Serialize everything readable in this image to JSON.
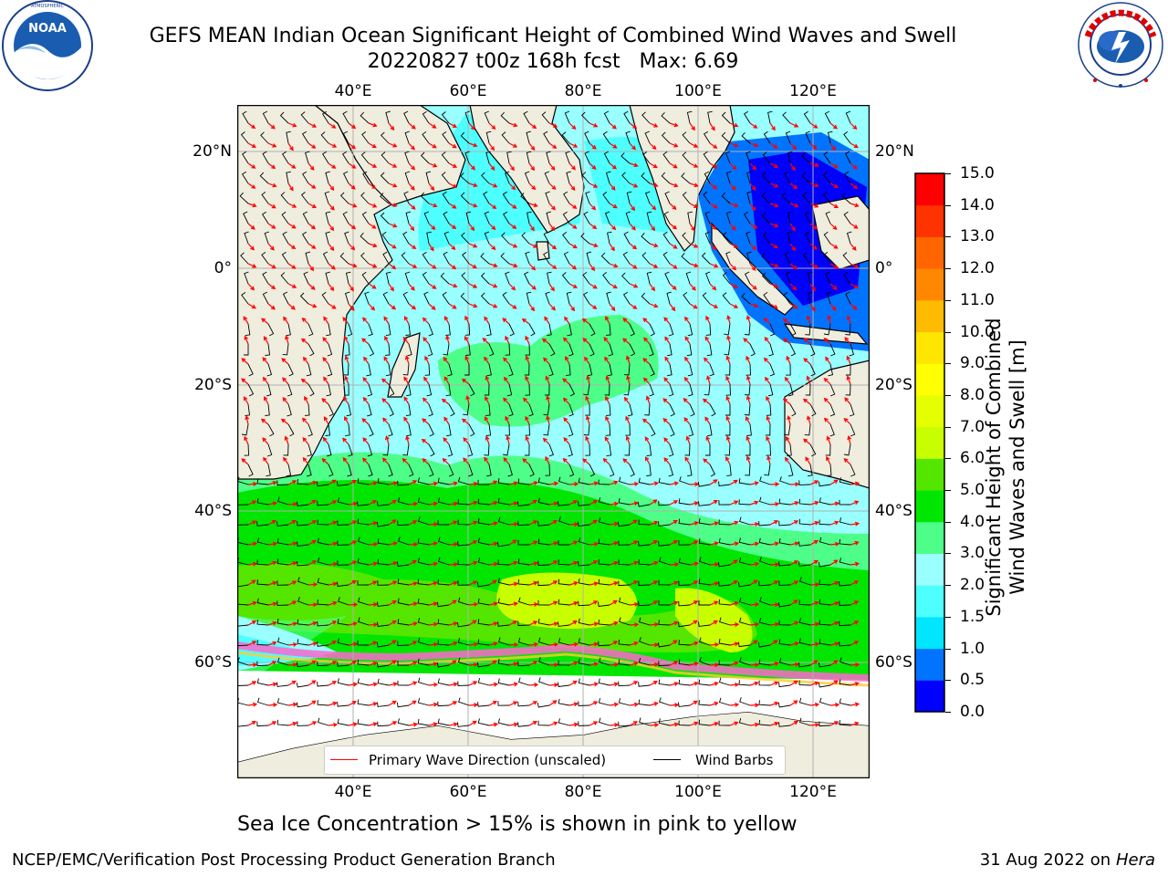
{
  "title": {
    "line1": "GEFS MEAN Indian Ocean Significant Height of Combined Wind Waves and Swell",
    "line2": "20220827 t00z 168h fcst   Max: 6.69"
  },
  "logos": {
    "left": {
      "name": "NOAA",
      "ring_text": "NATIONAL OCEANIC AND ATMOSPHERIC ADMINISTRATION · U.S. DEPARTMENT OF COMMERCE"
    },
    "right": {
      "name": "NATIONAL WEATHER SERVICE"
    }
  },
  "map": {
    "lon_range": [
      20,
      130
    ],
    "lat_range": [
      -70,
      28
    ],
    "lon_ticks": [
      "40°E",
      "60°E",
      "80°E",
      "100°E",
      "120°E"
    ],
    "lat_ticks_left": [
      "20°N",
      "0°",
      "20°S",
      "40°S",
      "60°S"
    ],
    "lat_ticks_right": [
      "20°N",
      "0°",
      "20°S",
      "40°S",
      "60°S"
    ],
    "grid": true,
    "land_color": "#efedde",
    "ice_colors": [
      "#ff66cc",
      "#ffcc33"
    ]
  },
  "legend": {
    "items": [
      {
        "label": "Primary Wave Direction (unscaled)",
        "color": "#ff0000"
      },
      {
        "label": "Wind Barbs",
        "color": "#000000"
      }
    ]
  },
  "colorbar": {
    "label_line1": "Significant Height of Combined",
    "label_line2": "Wind Waves and Swell [m]",
    "ticks": [
      "0.0",
      "0.5",
      "1.0",
      "1.5",
      "2.0",
      "3.0",
      "4.0",
      "5.0",
      "6.0",
      "7.0",
      "8.0",
      "9.0",
      "10.0",
      "11.0",
      "12.0",
      "13.0",
      "14.0",
      "15.0"
    ],
    "colors": [
      "#0000ff",
      "#0073ff",
      "#00e6ff",
      "#4dffff",
      "#99ffff",
      "#4dff88",
      "#00e600",
      "#55e600",
      "#c8ff00",
      "#e6ff00",
      "#ffff00",
      "#ffe600",
      "#ffbb00",
      "#ff8800",
      "#ff6600",
      "#ff3300",
      "#ff0000"
    ]
  },
  "note": "Sea Ice Concentration > 15% is shown in pink to yellow",
  "footer": {
    "left": "NCEP/EMC/Verification Post Processing Product Generation Branch",
    "date": "31 Aug 2022 on",
    "host": "Hera"
  }
}
